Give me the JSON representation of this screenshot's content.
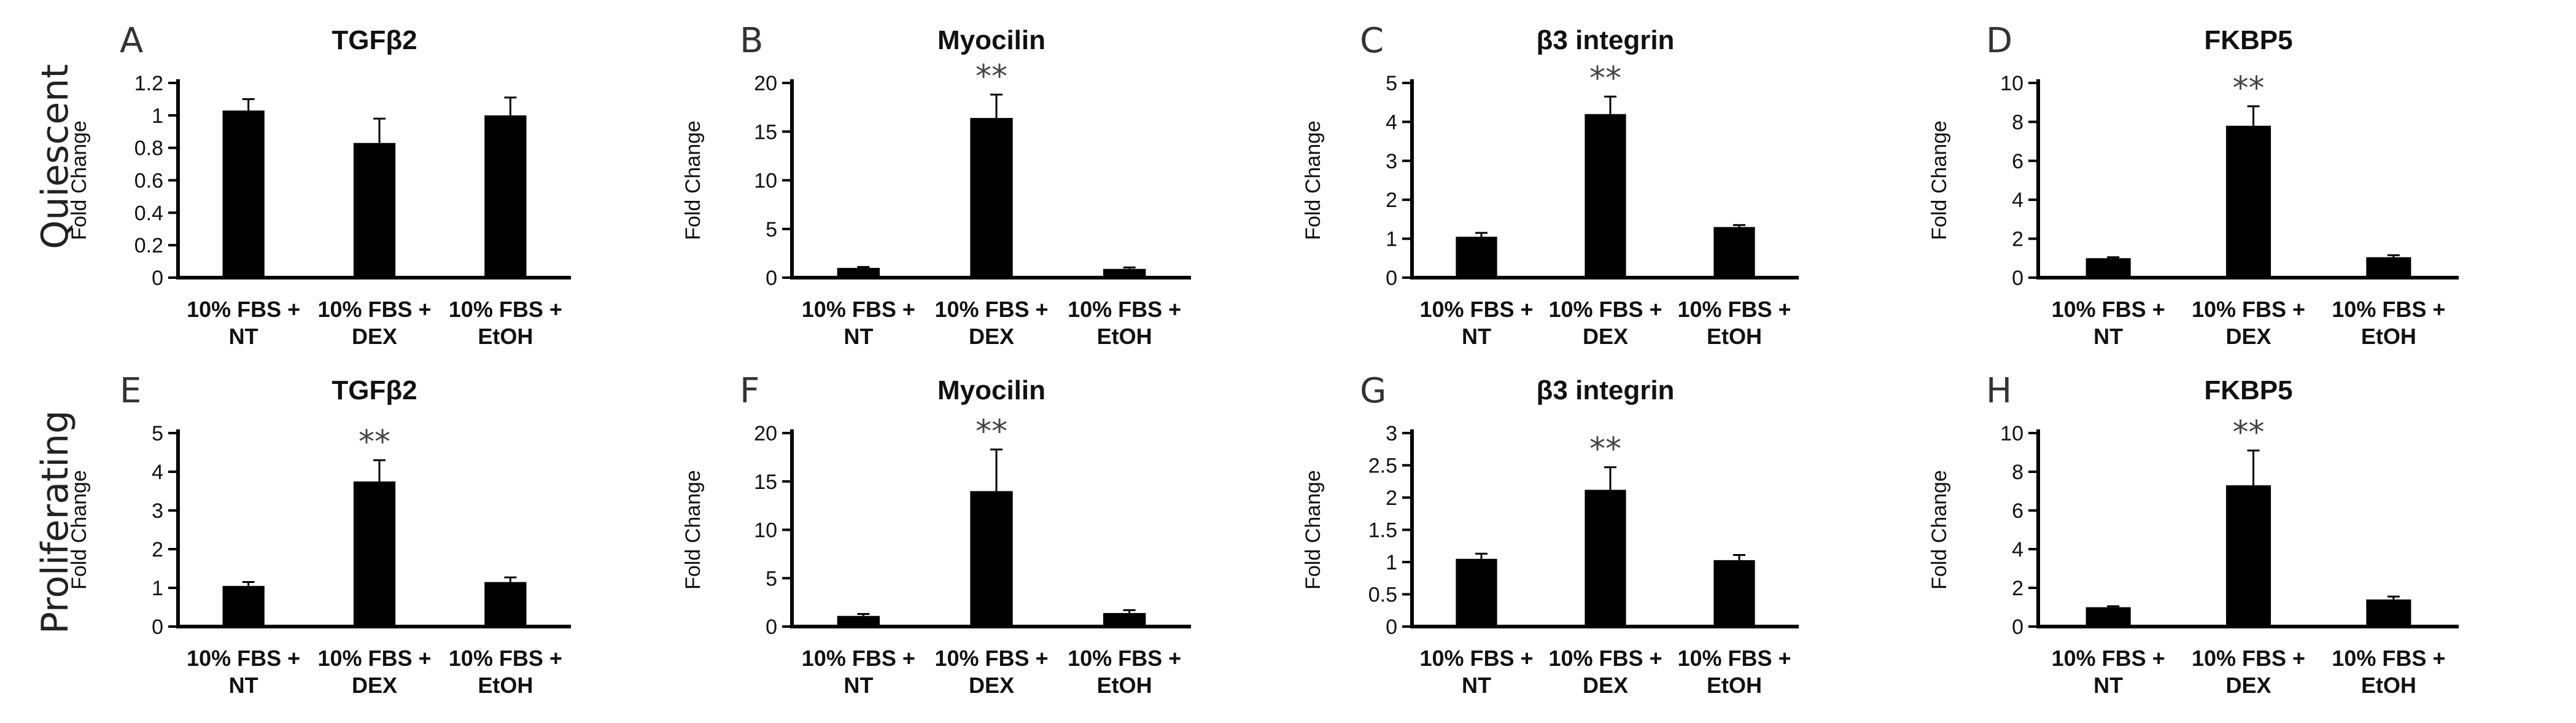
{
  "row_labels": [
    "Quiescent",
    "Proliferating"
  ],
  "chart_data": [
    {
      "letter": "A",
      "type": "bar",
      "title": "TGFβ2",
      "ylabel": "Fold Change",
      "ylim": [
        0,
        1.2
      ],
      "ticks": [
        "0",
        "0.2",
        "0.4",
        "0.6",
        "0.8",
        "1",
        "1.2"
      ],
      "categories": [
        [
          "10% FBS +",
          "NT"
        ],
        [
          "10% FBS +",
          "DEX"
        ],
        [
          "10% FBS +",
          "EtOH"
        ]
      ],
      "values": [
        1.03,
        0.83,
        1.0
      ],
      "errors": [
        0.07,
        0.15,
        0.11
      ],
      "significance": [
        "",
        "",
        ""
      ]
    },
    {
      "letter": "B",
      "type": "bar",
      "title": "Myocilin",
      "ylabel": "Fold Change",
      "ylim": [
        0,
        20
      ],
      "ticks": [
        "0",
        "5",
        "10",
        "15",
        "20"
      ],
      "categories": [
        [
          "10% FBS +",
          "NT"
        ],
        [
          "10% FBS +",
          "DEX"
        ],
        [
          "10% FBS +",
          "EtOH"
        ]
      ],
      "values": [
        1.0,
        16.4,
        0.9
      ],
      "errors": [
        0.1,
        2.4,
        0.15
      ],
      "significance": [
        "",
        "**",
        ""
      ]
    },
    {
      "letter": "C",
      "type": "bar",
      "title": "β3 integrin",
      "ylabel": "Fold Change",
      "ylim": [
        0,
        5
      ],
      "ticks": [
        "0",
        "1",
        "2",
        "3",
        "4",
        "5"
      ],
      "categories": [
        [
          "10% FBS +",
          "NT"
        ],
        [
          "10% FBS +",
          "DEX"
        ],
        [
          "10% FBS +",
          "EtOH"
        ]
      ],
      "values": [
        1.05,
        4.2,
        1.3
      ],
      "errors": [
        0.1,
        0.45,
        0.05
      ],
      "significance": [
        "",
        "**",
        ""
      ]
    },
    {
      "letter": "D",
      "type": "bar",
      "title": "FKBP5",
      "ylabel": "Fold Change",
      "ylim": [
        0,
        10
      ],
      "ticks": [
        "0",
        "2",
        "4",
        "6",
        "8",
        "10"
      ],
      "categories": [
        [
          "10% FBS +",
          "NT"
        ],
        [
          "10% FBS +",
          "DEX"
        ],
        [
          "10% FBS +",
          "EtOH"
        ]
      ],
      "values": [
        1.0,
        7.8,
        1.05
      ],
      "errors": [
        0.05,
        1.0,
        0.1
      ],
      "significance": [
        "",
        "**",
        ""
      ]
    },
    {
      "letter": "E",
      "type": "bar",
      "title": "TGFβ2",
      "ylabel": "Fold Change",
      "ylim": [
        0,
        5
      ],
      "ticks": [
        "0",
        "1",
        "2",
        "3",
        "4",
        "5"
      ],
      "categories": [
        [
          "10% FBS +",
          "NT"
        ],
        [
          "10% FBS +",
          "DEX"
        ],
        [
          "10% FBS +",
          "EtOH"
        ]
      ],
      "values": [
        1.05,
        3.75,
        1.15
      ],
      "errors": [
        0.1,
        0.55,
        0.12
      ],
      "significance": [
        "",
        "**",
        ""
      ]
    },
    {
      "letter": "F",
      "type": "bar",
      "title": "Myocilin",
      "ylabel": "Fold Change",
      "ylim": [
        0,
        20
      ],
      "ticks": [
        "0",
        "5",
        "10",
        "15",
        "20"
      ],
      "categories": [
        [
          "10% FBS +",
          "NT"
        ],
        [
          "10% FBS +",
          "DEX"
        ],
        [
          "10% FBS +",
          "EtOH"
        ]
      ],
      "values": [
        1.1,
        14.0,
        1.4
      ],
      "errors": [
        0.2,
        4.3,
        0.3
      ],
      "significance": [
        "",
        "**",
        ""
      ]
    },
    {
      "letter": "G",
      "type": "bar",
      "title": "β3 integrin",
      "ylabel": "Fold Change",
      "ylim": [
        0,
        3
      ],
      "ticks": [
        "0",
        "0.5",
        "1",
        "1.5",
        "2",
        "2.5",
        "3"
      ],
      "categories": [
        [
          "10% FBS +",
          "NT"
        ],
        [
          "10% FBS +",
          "DEX"
        ],
        [
          "10% FBS +",
          "EtOH"
        ]
      ],
      "values": [
        1.05,
        2.12,
        1.03
      ],
      "errors": [
        0.08,
        0.35,
        0.08
      ],
      "significance": [
        "",
        "**",
        ""
      ]
    },
    {
      "letter": "H",
      "type": "bar",
      "title": "FKBP5",
      "ylabel": "Fold Change",
      "ylim": [
        0,
        10
      ],
      "ticks": [
        "0",
        "2",
        "4",
        "6",
        "8",
        "10"
      ],
      "categories": [
        [
          "10% FBS +",
          "NT"
        ],
        [
          "10% FBS +",
          "DEX"
        ],
        [
          "10% FBS +",
          "EtOH"
        ]
      ],
      "values": [
        1.0,
        7.3,
        1.4
      ],
      "errors": [
        0.05,
        1.8,
        0.15
      ],
      "significance": [
        "",
        "**",
        ""
      ]
    }
  ]
}
